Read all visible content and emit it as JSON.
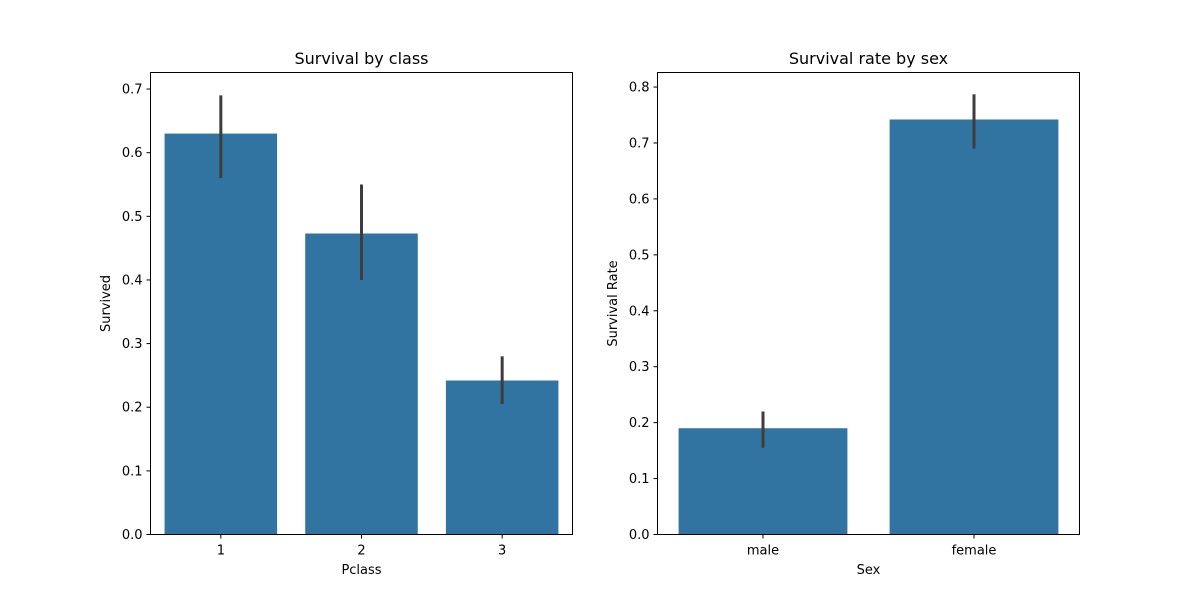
{
  "colors": {
    "bar": "#3274a1",
    "errorbar": "#3d3d3d",
    "axis": "#000000"
  },
  "chart_data": [
    {
      "type": "bar",
      "title": "Survival by class",
      "xlabel": "Pclass",
      "ylabel": "Survived",
      "categories": [
        "1",
        "2",
        "3"
      ],
      "values": [
        0.63,
        0.473,
        0.242
      ],
      "error_low": [
        0.56,
        0.4,
        0.205
      ],
      "error_high": [
        0.69,
        0.55,
        0.28
      ],
      "ylim": [
        0,
        0.726
      ],
      "yticks": [
        0.0,
        0.1,
        0.2,
        0.3,
        0.4,
        0.5,
        0.6,
        0.7
      ],
      "ytick_labels": [
        "0.0",
        "0.1",
        "0.2",
        "0.3",
        "0.4",
        "0.5",
        "0.6",
        "0.7"
      ],
      "grid": false
    },
    {
      "type": "bar",
      "title": "Survival rate by sex",
      "xlabel": "Sex",
      "ylabel": "Survival Rate",
      "categories": [
        "male",
        "female"
      ],
      "values": [
        0.19,
        0.742
      ],
      "error_low": [
        0.155,
        0.69
      ],
      "error_high": [
        0.22,
        0.787
      ],
      "ylim": [
        0,
        0.826
      ],
      "yticks": [
        0.0,
        0.1,
        0.2,
        0.3,
        0.4,
        0.5,
        0.6,
        0.7,
        0.8
      ],
      "ytick_labels": [
        "0.0",
        "0.1",
        "0.2",
        "0.3",
        "0.4",
        "0.5",
        "0.6",
        "0.7",
        "0.8"
      ],
      "grid": false
    }
  ]
}
